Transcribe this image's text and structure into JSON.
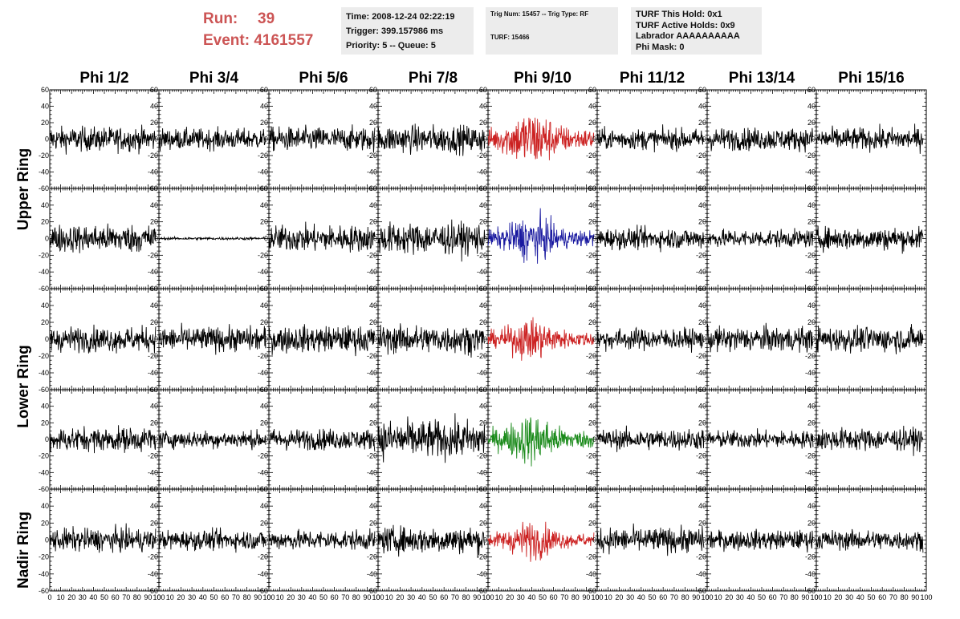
{
  "run_info": {
    "run_label": "Run:",
    "run_value": "39",
    "event_label": "Event:",
    "event_value": "4161557",
    "color": "#cc5555"
  },
  "time_box": {
    "time": "Time: 2008-12-24 02:22:19",
    "trigger": "Trigger: 399.157986 ms",
    "priority": "Priority: 5 -- Queue: 5"
  },
  "trig_box": {
    "trig": "Trig Num: 15457 -- Trig Type: RF",
    "turf": "TURF: 15466"
  },
  "turf_box": {
    "hold": "TURF This Hold: 0x1",
    "active": "TURF Active Holds: 0x9",
    "labrador": "Labrador AAAAAAAAAA",
    "phimask": "Phi Mask: 0"
  },
  "columns": [
    "Phi 1/2",
    "Phi 3/4",
    "Phi 5/6",
    "Phi 7/8",
    "Phi 9/10",
    "Phi 11/12",
    "Phi 13/14",
    "Phi 15/16"
  ],
  "ring_labels": [
    "Upper Ring",
    "Lower Ring",
    "Nadir Ring"
  ],
  "y_ticks": [
    "60",
    "40",
    "20",
    "0",
    "-20",
    "-40",
    "-60"
  ],
  "x_ticks": [
    "0",
    "10",
    "20",
    "30",
    "40",
    "50",
    "60",
    "70",
    "80",
    "90",
    "100"
  ],
  "x_range": [
    0,
    100
  ],
  "y_range": [
    -60,
    60
  ],
  "highlight_column": 4,
  "trace_colors": {
    "default": "#000000",
    "upper_a": "#cc2222",
    "upper_b": "#1a1aa0",
    "lower_a": "#cc2222",
    "lower_b": "#1a8a1a",
    "nadir": "#cc2222"
  },
  "trace_amplitudes": [
    [
      14,
      12,
      14,
      16,
      26,
      12,
      13,
      13
    ],
    [
      16,
      1.5,
      15,
      18,
      20,
      12,
      10,
      13
    ],
    [
      14,
      14,
      15,
      16,
      18,
      12,
      14,
      14
    ],
    [
      14,
      10,
      12,
      22,
      22,
      12,
      10,
      13
    ],
    [
      13,
      11,
      11,
      15,
      16,
      14,
      11,
      11
    ]
  ]
}
